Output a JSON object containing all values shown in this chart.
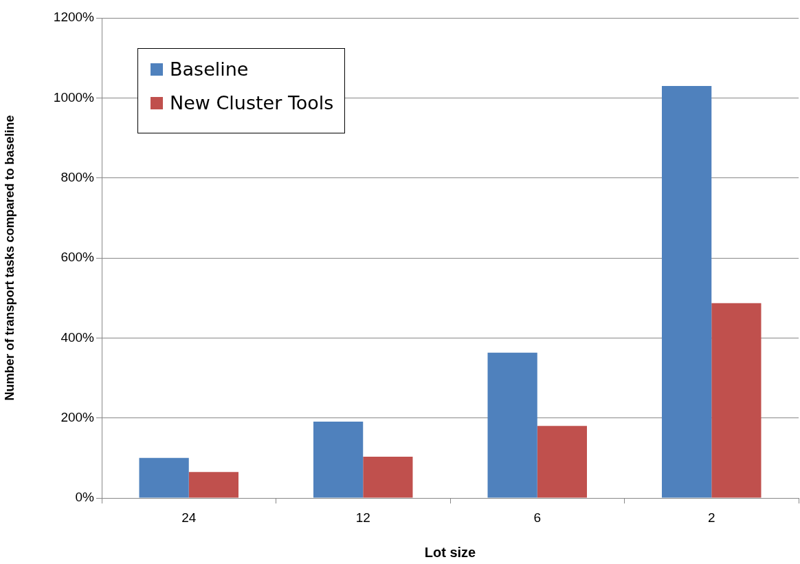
{
  "chart_data": {
    "type": "bar",
    "xlabel": "Lot size",
    "ylabel": "Number of transport tasks compared to baseline",
    "categories": [
      "24",
      "12",
      "6",
      "2"
    ],
    "series": [
      {
        "name": "Baseline",
        "color": "#4f81bd",
        "values": [
          100,
          191,
          363,
          1030
        ]
      },
      {
        "name": "New Cluster Tools",
        "color": "#c0504d",
        "values": [
          65,
          103,
          180,
          487
        ]
      }
    ],
    "ylim": [
      0,
      1200
    ],
    "yticks": [
      {
        "value": 0,
        "label": "0%"
      },
      {
        "value": 200,
        "label": "200%"
      },
      {
        "value": 400,
        "label": "400%"
      },
      {
        "value": 600,
        "label": "600%"
      },
      {
        "value": 800,
        "label": "800%"
      },
      {
        "value": 1000,
        "label": "1000%"
      },
      {
        "value": 1200,
        "label": "1200%"
      }
    ],
    "grid": "y",
    "legend": "top left"
  }
}
